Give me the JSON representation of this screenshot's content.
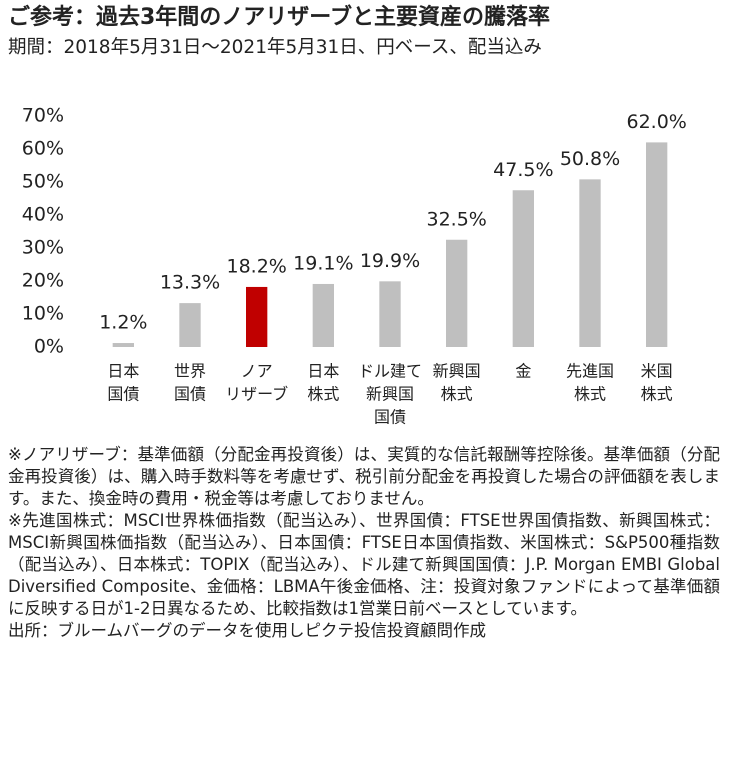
{
  "chart_data": {
    "type": "bar",
    "title": "ご参考：過去3年間のノアリザーブと主要資産の騰落率",
    "subtitle": "期間：2018年5月31日～2021年5月31日、円ベース、配当込み",
    "categories": [
      [
        "日本",
        "国債"
      ],
      [
        "世界",
        "国債"
      ],
      [
        "ノア",
        "リザーブ"
      ],
      [
        "日本",
        "株式"
      ],
      [
        "ドル建て",
        "新興国",
        "国債"
      ],
      [
        "新興国",
        "株式"
      ],
      [
        "金"
      ],
      [
        "先進国",
        "株式"
      ],
      [
        "米国",
        "株式"
      ]
    ],
    "values": [
      1.2,
      13.3,
      18.2,
      19.1,
      19.9,
      32.5,
      47.5,
      50.8,
      62.0
    ],
    "value_labels": [
      "1.2%",
      "13.3%",
      "18.2%",
      "19.1%",
      "19.9%",
      "32.5%",
      "47.5%",
      "50.8%",
      "62.0%"
    ],
    "colors": [
      "#bfbfbf",
      "#bfbfbf",
      "#c00000",
      "#bfbfbf",
      "#bfbfbf",
      "#bfbfbf",
      "#bfbfbf",
      "#bfbfbf",
      "#bfbfbf"
    ],
    "ylim": [
      0,
      70
    ],
    "yticks": [
      {
        "value": 0,
        "label": "0%"
      },
      {
        "value": 10,
        "label": "10%"
      },
      {
        "value": 20,
        "label": "20%"
      },
      {
        "value": 30,
        "label": "30%"
      },
      {
        "value": 40,
        "label": "40%"
      },
      {
        "value": 50,
        "label": "50%"
      },
      {
        "value": 60,
        "label": "60%"
      },
      {
        "value": 70,
        "label": "70%"
      }
    ],
    "grid": false,
    "notes": [
      "※ノアリザーブ：基準価額（分配金再投資後）は、実質的な信託報酬等控除後。基準価額（分配金再投資後）は、購入時手数料等を考慮せず、税引前分配金を再投資した場合の評価額を表します。また、換金時の費用・税金等は考慮しておりません。",
      "※先進国株式：MSCI世界株価指数（配当込み）、世界国債：FTSE世界国債指数、新興国株式：MSCI新興国株価指数（配当込み）、日本国債：FTSE日本国債指数、米国株式：S&P500種指数（配当込み）、日本株式：TOPIX（配当込み）、ドル建て新興国国債：J.P. Morgan EMBI Global Diversified Composite、金価格：LBMA午後金価格、注：投資対象ファンドによって基準価額に反映する日が1-2日異なるため、比較指数は1営業日前ベースとしています。",
      "出所：ブルームバーグのデータを使用しピクテ投信投資顧問作成"
    ]
  }
}
